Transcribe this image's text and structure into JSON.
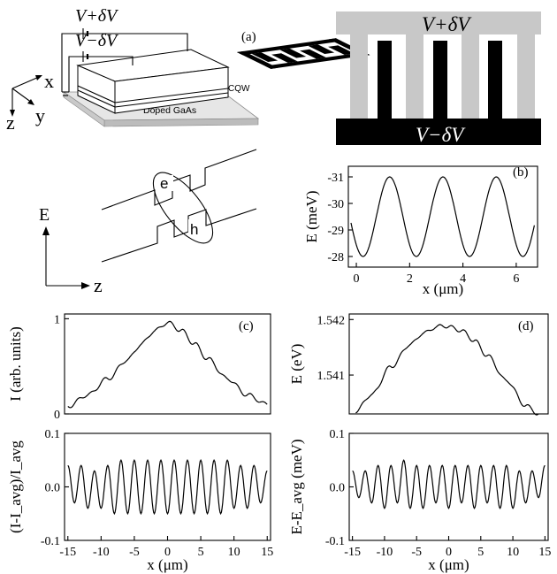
{
  "panel_a": {
    "label": "(a)",
    "bias_top": "V+δV",
    "bias_bottom": "V−δV",
    "axis_x": "x",
    "axis_y": "y",
    "axis_z": "z",
    "layer_cqw": "CQW",
    "substrate": "Doped GaAs"
  },
  "gate_diagram": {
    "top_label": "V+δV",
    "bottom_label": "V−δV"
  },
  "band_diagram": {
    "axis_e": "E",
    "axis_z": "z",
    "electron": "e",
    "hole": "h"
  },
  "colors": {
    "light_gate": "#c8c8c8",
    "dark_gate": "#000000",
    "substrate": "#d9d9d9"
  },
  "chart_data": [
    {
      "id": "b",
      "type": "line",
      "panel_label": "(b)",
      "xlabel": "x (μm)",
      "ylabel": "E (meV)",
      "xlim": [
        -0.3,
        6.8
      ],
      "ylim": [
        -27.6,
        -31.4
      ],
      "xticks": [
        0,
        2,
        4,
        6
      ],
      "yticks": [
        -31,
        -30,
        -29,
        -28
      ],
      "x": [
        -0.2,
        0.25,
        1.25,
        2.25,
        3.25,
        4.25,
        5.25,
        6.25,
        6.7
      ],
      "y": [
        -29.2,
        -28.0,
        -31.0,
        -28.0,
        -31.0,
        -28.0,
        -31.0,
        -28.0,
        -29.0
      ]
    },
    {
      "id": "c_top",
      "type": "line",
      "panel_label": "(c)",
      "xlabel": "",
      "ylabel": "I (arb. units)",
      "xlim": [
        -15.5,
        15.5
      ],
      "ylim": [
        0,
        1.05
      ],
      "yticks": [
        0,
        1
      ],
      "x": [
        -15,
        -12,
        -9,
        -6,
        -4,
        -2,
        0,
        2,
        4,
        6,
        9,
        12,
        15
      ],
      "y": [
        0.08,
        0.2,
        0.37,
        0.57,
        0.73,
        0.87,
        0.96,
        0.88,
        0.74,
        0.58,
        0.37,
        0.2,
        0.1
      ]
    },
    {
      "id": "c_bottom",
      "type": "line",
      "xlabel": "x (μm)",
      "ylabel": "(I-I_avg)/I_avg",
      "xlim": [
        -15.5,
        15.5
      ],
      "ylim": [
        -0.1,
        0.1
      ],
      "xticks": [
        -15,
        -10,
        -5,
        0,
        5,
        10,
        15
      ],
      "yticks": [
        -0.1,
        0.0,
        0.1
      ],
      "x": [
        -15,
        -14,
        -13,
        -12,
        -11,
        -10,
        -9,
        -8,
        -7,
        -6,
        -5,
        -4,
        -3,
        -2,
        -1,
        0,
        1,
        2,
        3,
        4,
        5,
        6,
        7,
        8,
        9,
        10,
        11,
        12,
        13,
        14,
        15
      ],
      "y": [
        0.04,
        -0.03,
        0.04,
        -0.04,
        0.03,
        -0.04,
        0.04,
        -0.05,
        0.05,
        -0.05,
        0.05,
        -0.05,
        0.05,
        -0.05,
        0.05,
        -0.05,
        0.05,
        -0.05,
        0.05,
        -0.05,
        0.05,
        -0.05,
        0.05,
        -0.05,
        0.05,
        -0.04,
        0.04,
        -0.04,
        0.04,
        -0.03,
        0.03
      ]
    },
    {
      "id": "d_top",
      "type": "line",
      "panel_label": "(d)",
      "xlabel": "",
      "ylabel": "E (eV)",
      "xlim": [
        -15.5,
        15.5
      ],
      "ylim": [
        1.5403,
        1.5421
      ],
      "yticks": [
        1.541,
        1.542
      ],
      "yticklabels": [
        "1.541",
        "1.542"
      ],
      "x": [
        -14.5,
        -12,
        -9,
        -6,
        -4,
        -2,
        -1,
        0,
        2,
        4,
        6,
        9,
        12,
        14
      ],
      "y": [
        1.54035,
        1.54065,
        1.54115,
        1.54155,
        1.54175,
        1.54186,
        1.54189,
        1.54187,
        1.5418,
        1.54162,
        1.54135,
        1.5409,
        1.54045,
        1.5403
      ]
    },
    {
      "id": "d_bottom",
      "type": "line",
      "xlabel": "x (μm)",
      "ylabel": "E-E_avg (meV)",
      "xlim": [
        -15.5,
        15.5
      ],
      "ylim": [
        -0.1,
        0.1
      ],
      "xticks": [
        -15,
        -10,
        -5,
        0,
        5,
        10,
        15
      ],
      "yticks": [
        -0.1,
        0.0,
        0.1
      ],
      "x": [
        -15,
        -14,
        -13,
        -12,
        -11,
        -10,
        -9,
        -8,
        -7,
        -6,
        -5,
        -4,
        -3,
        -2,
        -1,
        0,
        1,
        2,
        3,
        4,
        5,
        6,
        7,
        8,
        9,
        10,
        11,
        12,
        13,
        14,
        15
      ],
      "y": [
        0.03,
        -0.02,
        0.03,
        -0.03,
        0.04,
        -0.04,
        0.04,
        -0.03,
        0.05,
        -0.04,
        0.04,
        -0.04,
        0.04,
        -0.03,
        0.04,
        -0.04,
        0.04,
        -0.03,
        0.04,
        -0.04,
        0.04,
        -0.03,
        0.04,
        -0.04,
        0.04,
        -0.04,
        0.03,
        -0.03,
        0.03,
        -0.02,
        0.04
      ]
    }
  ]
}
